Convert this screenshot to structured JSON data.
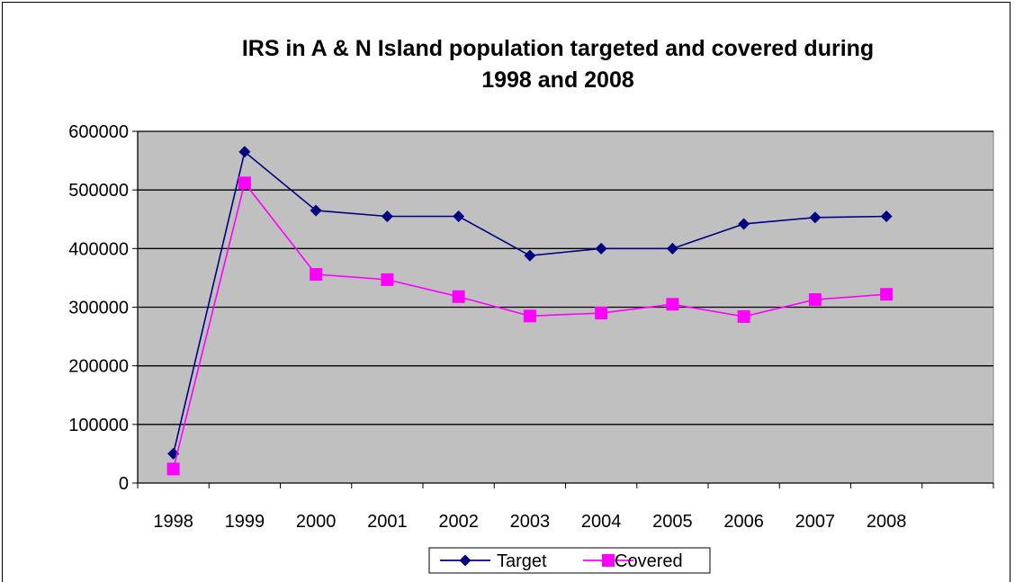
{
  "chart_data": {
    "type": "line",
    "title_line1": "IRS in A & N Island population targeted and covered during",
    "title_line2": "1998 and 2008",
    "xlabel": "",
    "ylabel": "",
    "categories": [
      "1998",
      "1999",
      "2000",
      "2001",
      "2002",
      "2003",
      "2004",
      "2005",
      "2006",
      "2007",
      "2008"
    ],
    "extra_empty_category": true,
    "ylim": [
      0,
      600000
    ],
    "yticks": [
      0,
      100000,
      200000,
      300000,
      400000,
      500000,
      600000
    ],
    "ytick_labels": [
      "0",
      "100000",
      "200000",
      "300000",
      "400000",
      "500000",
      "600000"
    ],
    "grid": true,
    "legend_position": "bottom",
    "series": [
      {
        "name": "Target",
        "color": "#000080",
        "marker": "diamond",
        "values": [
          50000,
          565000,
          465000,
          455000,
          455000,
          388000,
          400000,
          400000,
          442000,
          453000,
          455000
        ]
      },
      {
        "name": "Covered",
        "color": "#FF00FF",
        "marker": "square",
        "values": [
          24000,
          512000,
          356000,
          347000,
          318000,
          285000,
          290000,
          305000,
          284000,
          313000,
          322000
        ]
      }
    ],
    "plot_background": "#C0C0C0"
  }
}
